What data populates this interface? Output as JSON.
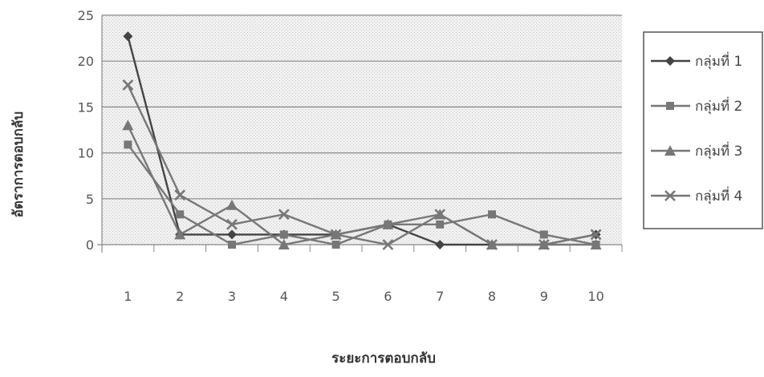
{
  "chart_data": {
    "type": "line",
    "title": "",
    "xlabel": "ระยะการตอบกลับ",
    "ylabel": "อัตราการตอบกลับ",
    "categories": [
      "1",
      "2",
      "3",
      "4",
      "5",
      "6",
      "7",
      "8",
      "9",
      "10"
    ],
    "ylim": [
      0,
      25
    ],
    "yticks": [
      "0",
      "5",
      "10",
      "15",
      "20",
      "25"
    ],
    "grid": true,
    "legend_position": "right",
    "series": [
      {
        "name": "กลุ่มที่ 1",
        "marker": "diamond",
        "values": [
          22.7,
          1.1,
          1.1,
          1.1,
          1.1,
          2.2,
          0,
          0,
          0,
          1.1
        ]
      },
      {
        "name": "กลุ่มที่ 2",
        "marker": "square",
        "values": [
          10.9,
          3.3,
          0,
          1.1,
          0,
          2.2,
          2.2,
          3.3,
          1.1,
          0
        ]
      },
      {
        "name": "กลุ่มที่ 3",
        "marker": "triangle",
        "values": [
          13.0,
          1.1,
          4.3,
          0,
          1.1,
          2.2,
          3.3,
          0,
          0,
          0
        ]
      },
      {
        "name": "กลุ่มที่ 4",
        "marker": "x",
        "values": [
          17.4,
          5.4,
          2.2,
          3.3,
          1.1,
          0,
          3.3,
          0,
          0,
          1.1
        ]
      }
    ],
    "colors": {
      "line": "#777777",
      "line_dark": "#444444",
      "plot_bg": "#eeeeee",
      "grid": "#888888"
    }
  }
}
